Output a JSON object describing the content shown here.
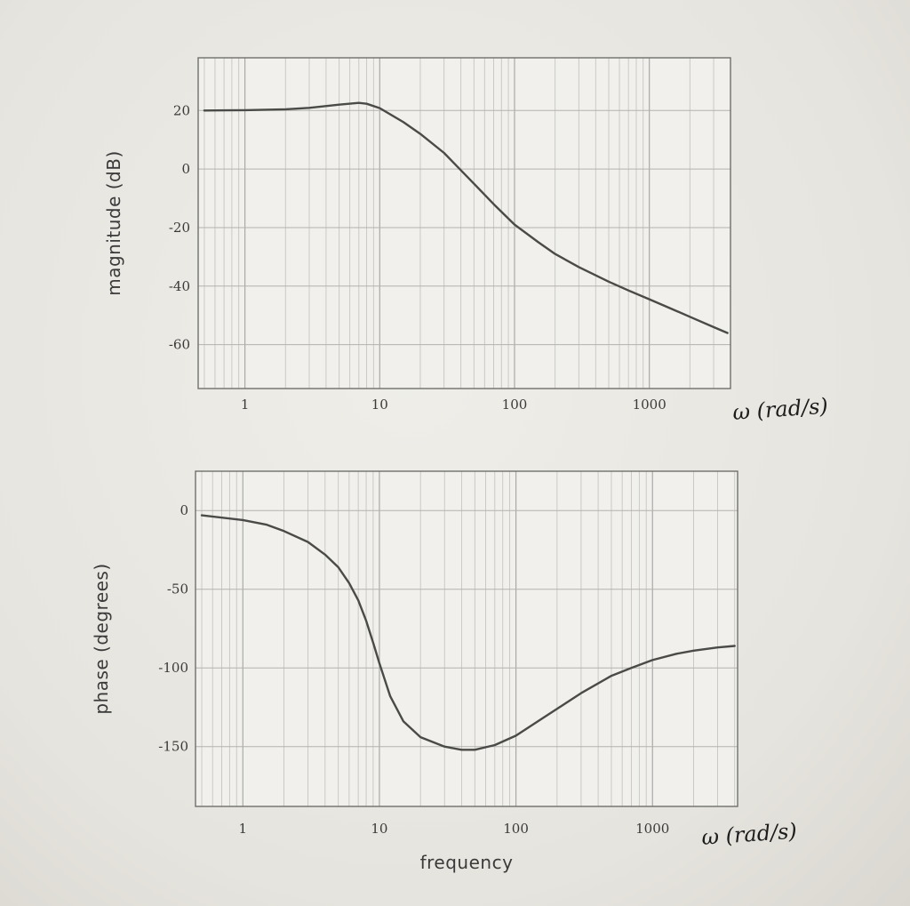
{
  "chart_data": [
    {
      "type": "line",
      "ylabel": "magnitude (dB)",
      "xlabel": "",
      "x_scale": "log",
      "xlim": [
        0.45,
        4000
      ],
      "ylim": [
        -75,
        38
      ],
      "grid": true,
      "x_ticks": [
        1,
        10,
        100,
        1000
      ],
      "y_ticks": [
        20,
        0,
        -20,
        -40,
        -60
      ],
      "annotation": "ω (rad/s)",
      "series": [
        {
          "x": [
            0.5,
            1,
            2,
            3,
            5,
            7,
            8,
            10,
            15,
            20,
            30,
            50,
            70,
            100,
            150,
            200,
            300,
            500,
            700,
            1000,
            1500,
            2000,
            3000,
            3800
          ],
          "y": [
            20,
            20.1,
            20.4,
            20.9,
            22,
            22.6,
            22.3,
            20.8,
            16,
            12,
            5.5,
            -5,
            -12,
            -19,
            -25,
            -29,
            -33.5,
            -38.5,
            -41.5,
            -44.5,
            -48,
            -50.5,
            -54,
            -56
          ]
        }
      ]
    },
    {
      "type": "line",
      "ylabel": "phase (degrees)",
      "xlabel": "frequency",
      "x_scale": "log",
      "xlim": [
        0.45,
        4200
      ],
      "ylim": [
        -188,
        25
      ],
      "grid": true,
      "x_ticks": [
        1,
        10,
        100,
        1000
      ],
      "y_ticks": [
        0,
        -50,
        -100,
        -150
      ],
      "annotation": "ω (rad/s)",
      "series": [
        {
          "x": [
            0.5,
            1,
            1.5,
            2,
            3,
            4,
            5,
            6,
            7,
            8,
            9,
            10,
            12,
            15,
            20,
            30,
            40,
            50,
            70,
            100,
            150,
            200,
            300,
            500,
            700,
            1000,
            1500,
            2000,
            3000,
            4000
          ],
          "y": [
            -3,
            -6,
            -9,
            -13,
            -20,
            -28,
            -36,
            -46,
            -57,
            -70,
            -84,
            -97,
            -118,
            -134,
            -144,
            -150,
            -152,
            -152,
            -149,
            -143,
            -133,
            -126,
            -116,
            -105,
            -100,
            -95,
            -91,
            -89,
            -87,
            -86
          ]
        }
      ]
    }
  ]
}
